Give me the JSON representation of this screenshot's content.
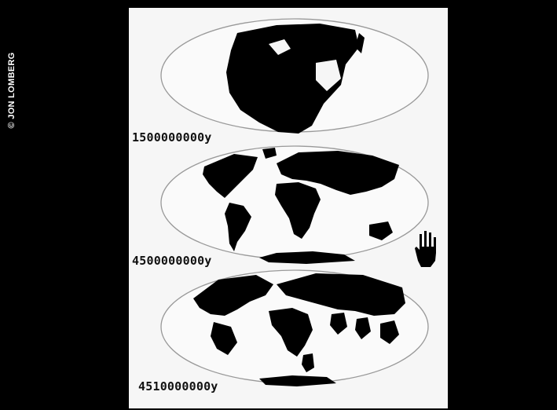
{
  "credit": "© JON LOMBERG",
  "maps": [
    {
      "label": "1500000000y"
    },
    {
      "label": "4500000000y"
    },
    {
      "label": "4510000000y"
    }
  ],
  "icons": {
    "scale_marker": "hand-icon"
  },
  "colors": {
    "background": "#000000",
    "plate": "#f6f6f6",
    "land": "#000000"
  }
}
